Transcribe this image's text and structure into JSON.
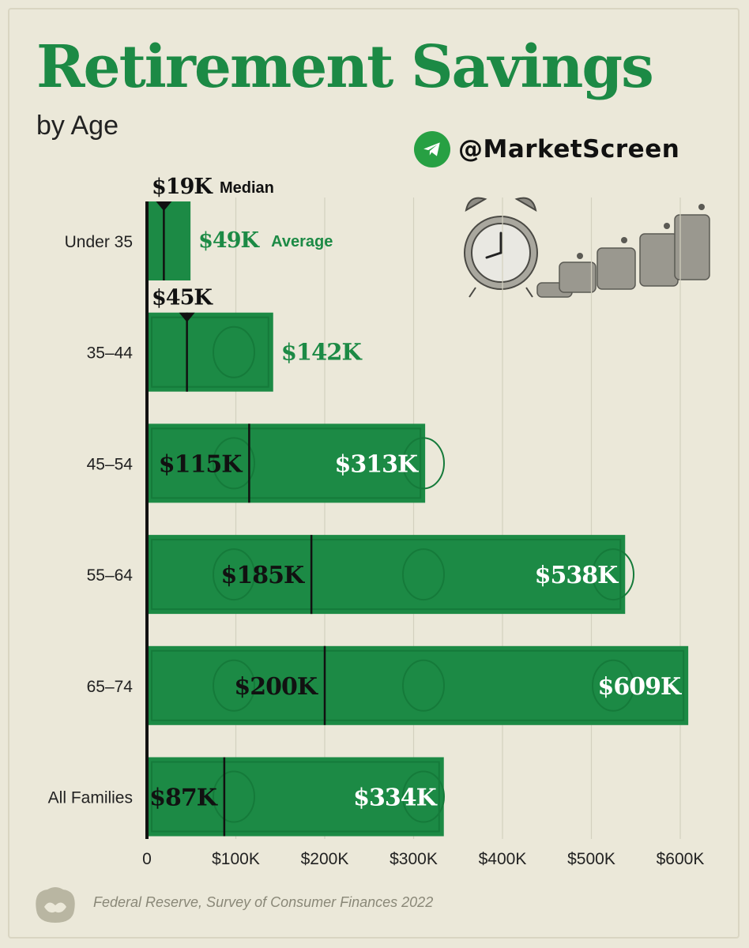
{
  "header": {
    "title": "Retirement Savings",
    "subtitle": "by Age",
    "handle": "@MarketScreen"
  },
  "source": "Federal Reserve, Survey of Consumer Finances 2022",
  "chart_data": {
    "type": "bar",
    "orientation": "horizontal",
    "title": "Retirement Savings",
    "subtitle": "by Age",
    "categories": [
      "Under 35",
      "35–44",
      "45–54",
      "55–64",
      "65–74",
      "All Families"
    ],
    "series": [
      {
        "name": "Average",
        "values": [
          49,
          142,
          313,
          538,
          609,
          334
        ],
        "labels": [
          "$49K",
          "$142K",
          "$313K",
          "$538K",
          "$609K",
          "$334K"
        ]
      },
      {
        "name": "Median",
        "values": [
          19,
          45,
          115,
          185,
          200,
          87
        ],
        "labels": [
          "$19K",
          "$45K",
          "$115K",
          "$185K",
          "$200K",
          "$87K"
        ]
      }
    ],
    "legend": {
      "median_label": "Median",
      "average_label": "Average"
    },
    "xticks": [
      "0",
      "$100K",
      "$200K",
      "$300K",
      "$400K",
      "$500K",
      "$600K"
    ],
    "xlim": [
      0,
      620
    ],
    "grid": true,
    "colors": {
      "bar": "#1c8a45",
      "title": "#1c8a45",
      "median_line": "#111111",
      "background": "#ebe8d9"
    }
  }
}
